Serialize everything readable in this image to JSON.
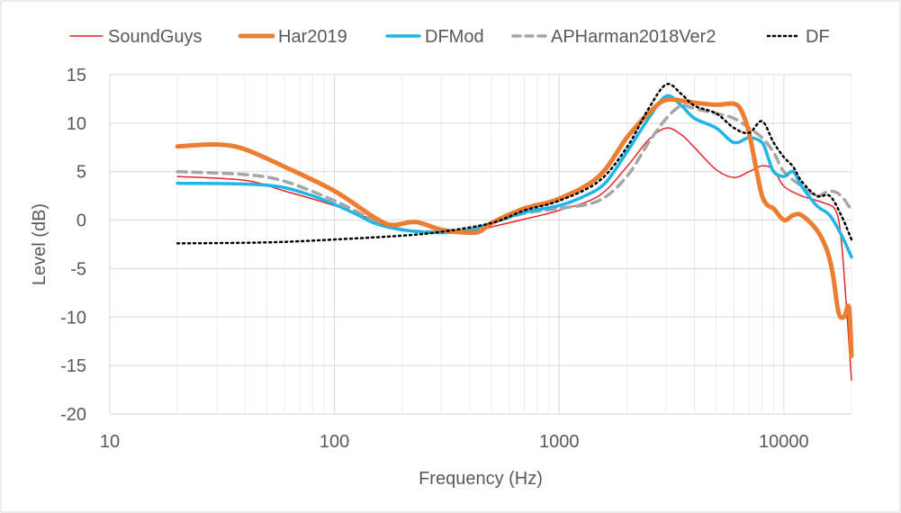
{
  "chart_data": {
    "type": "line",
    "title": "",
    "xlabel": "Frequency (Hz)",
    "ylabel": "Level (dB)",
    "x_scale": "log",
    "xlim": [
      10,
      20000
    ],
    "ylim": [
      -20,
      15
    ],
    "x_ticks": [
      "10",
      "100",
      "1000",
      "10000"
    ],
    "y_ticks": [
      "15",
      "10",
      "5",
      "0",
      "-5",
      "-10",
      "-15",
      "-20"
    ],
    "grid": true,
    "legend_position": "top",
    "series": [
      {
        "name": "SoundGuys",
        "color": "#e8262a",
        "style": "solid",
        "points": [
          [
            20,
            4.5
          ],
          [
            40,
            4.1
          ],
          [
            60,
            3.0
          ],
          [
            100,
            1.5
          ],
          [
            150,
            0.0
          ],
          [
            200,
            -0.9
          ],
          [
            300,
            -1.3
          ],
          [
            400,
            -1.2
          ],
          [
            500,
            -0.7
          ],
          [
            700,
            0.1
          ],
          [
            1000,
            1.0
          ],
          [
            1500,
            2.5
          ],
          [
            2000,
            5.5
          ],
          [
            2500,
            8.3
          ],
          [
            3000,
            9.5
          ],
          [
            3500,
            8.8
          ],
          [
            4000,
            7.5
          ],
          [
            5000,
            5.2
          ],
          [
            6000,
            4.4
          ],
          [
            7000,
            5.0
          ],
          [
            8000,
            5.6
          ],
          [
            9000,
            5.2
          ],
          [
            10000,
            3.5
          ],
          [
            12000,
            2.5
          ],
          [
            15000,
            1.8
          ],
          [
            17000,
            1.0
          ],
          [
            18000,
            -2.0
          ],
          [
            19000,
            -9.0
          ],
          [
            20000,
            -16.5
          ]
        ]
      },
      {
        "name": "Har2019",
        "color": "#ed7d31",
        "style": "solid",
        "points": [
          [
            20,
            7.6
          ],
          [
            30,
            7.8
          ],
          [
            40,
            7.3
          ],
          [
            60,
            5.5
          ],
          [
            100,
            3.0
          ],
          [
            150,
            0.3
          ],
          [
            180,
            -0.5
          ],
          [
            230,
            -0.2
          ],
          [
            300,
            -1.0
          ],
          [
            400,
            -1.3
          ],
          [
            450,
            -1.1
          ],
          [
            500,
            -0.3
          ],
          [
            700,
            1.2
          ],
          [
            1000,
            2.2
          ],
          [
            1500,
            4.5
          ],
          [
            2000,
            8.5
          ],
          [
            2500,
            11.0
          ],
          [
            3000,
            12.4
          ],
          [
            4000,
            12.1
          ],
          [
            5000,
            11.9
          ],
          [
            6000,
            12.0
          ],
          [
            6500,
            11.2
          ],
          [
            7000,
            9.0
          ],
          [
            7500,
            5.5
          ],
          [
            8000,
            2.5
          ],
          [
            8500,
            1.5
          ],
          [
            9000,
            1.2
          ],
          [
            10000,
            0.0
          ],
          [
            11000,
            0.5
          ],
          [
            12000,
            0.5
          ],
          [
            14000,
            -1.0
          ],
          [
            15500,
            -3.0
          ],
          [
            16500,
            -5.5
          ],
          [
            17500,
            -9.5
          ],
          [
            18500,
            -10.0
          ],
          [
            19500,
            -9.0
          ],
          [
            20000,
            -14.0
          ]
        ]
      },
      {
        "name": "DFMod",
        "color": "#1fb5e8",
        "style": "solid",
        "points": [
          [
            20,
            3.8
          ],
          [
            50,
            3.6
          ],
          [
            80,
            2.5
          ],
          [
            120,
            0.8
          ],
          [
            150,
            -0.3
          ],
          [
            200,
            -1.0
          ],
          [
            300,
            -1.3
          ],
          [
            400,
            -1.0
          ],
          [
            500,
            -0.3
          ],
          [
            700,
            0.8
          ],
          [
            1000,
            1.5
          ],
          [
            1300,
            2.5
          ],
          [
            1600,
            3.8
          ],
          [
            2000,
            7.0
          ],
          [
            2500,
            10.5
          ],
          [
            3000,
            12.8
          ],
          [
            3500,
            11.8
          ],
          [
            4000,
            10.5
          ],
          [
            5000,
            9.5
          ],
          [
            6000,
            8.0
          ],
          [
            7000,
            8.5
          ],
          [
            8000,
            8.0
          ],
          [
            8500,
            6.5
          ],
          [
            9000,
            5.0
          ],
          [
            10000,
            4.5
          ],
          [
            11000,
            5.0
          ],
          [
            12000,
            3.5
          ],
          [
            14000,
            1.5
          ],
          [
            16000,
            0.5
          ],
          [
            18000,
            -1.5
          ],
          [
            20000,
            -3.8
          ]
        ]
      },
      {
        "name": "APHarman2018Ver2",
        "color": "#a6a6a6",
        "style": "dashed",
        "points": [
          [
            20,
            5.0
          ],
          [
            40,
            4.7
          ],
          [
            60,
            4.0
          ],
          [
            100,
            2.0
          ],
          [
            150,
            0.0
          ],
          [
            200,
            -1.0
          ],
          [
            300,
            -1.2
          ],
          [
            400,
            -1.0
          ],
          [
            500,
            -0.3
          ],
          [
            700,
            0.7
          ],
          [
            1000,
            1.2
          ],
          [
            1500,
            2.0
          ],
          [
            2000,
            4.5
          ],
          [
            2500,
            8.0
          ],
          [
            3000,
            10.5
          ],
          [
            3500,
            11.8
          ],
          [
            4000,
            11.5
          ],
          [
            5000,
            11.0
          ],
          [
            6000,
            10.5
          ],
          [
            7000,
            9.5
          ],
          [
            8000,
            8.5
          ],
          [
            9000,
            7.0
          ],
          [
            10000,
            5.0
          ],
          [
            12000,
            3.5
          ],
          [
            14000,
            2.5
          ],
          [
            16000,
            3.0
          ],
          [
            18000,
            2.5
          ],
          [
            20000,
            1.0
          ]
        ]
      },
      {
        "name": "DF",
        "color": "#000000",
        "style": "dotted",
        "points": [
          [
            20,
            -2.4
          ],
          [
            50,
            -2.3
          ],
          [
            100,
            -2.0
          ],
          [
            200,
            -1.6
          ],
          [
            300,
            -1.2
          ],
          [
            500,
            -0.3
          ],
          [
            700,
            1.0
          ],
          [
            1000,
            2.0
          ],
          [
            1500,
            4.0
          ],
          [
            2000,
            7.5
          ],
          [
            2500,
            11.5
          ],
          [
            3000,
            14.0
          ],
          [
            3500,
            13.0
          ],
          [
            4000,
            11.8
          ],
          [
            5000,
            11.0
          ],
          [
            6000,
            9.5
          ],
          [
            7000,
            9.0
          ],
          [
            8000,
            10.2
          ],
          [
            9000,
            8.0
          ],
          [
            10000,
            6.5
          ],
          [
            11000,
            5.5
          ],
          [
            12000,
            4.0
          ],
          [
            14000,
            2.5
          ],
          [
            16000,
            2.5
          ],
          [
            18000,
            0.5
          ],
          [
            20000,
            -2.0
          ]
        ]
      }
    ]
  }
}
